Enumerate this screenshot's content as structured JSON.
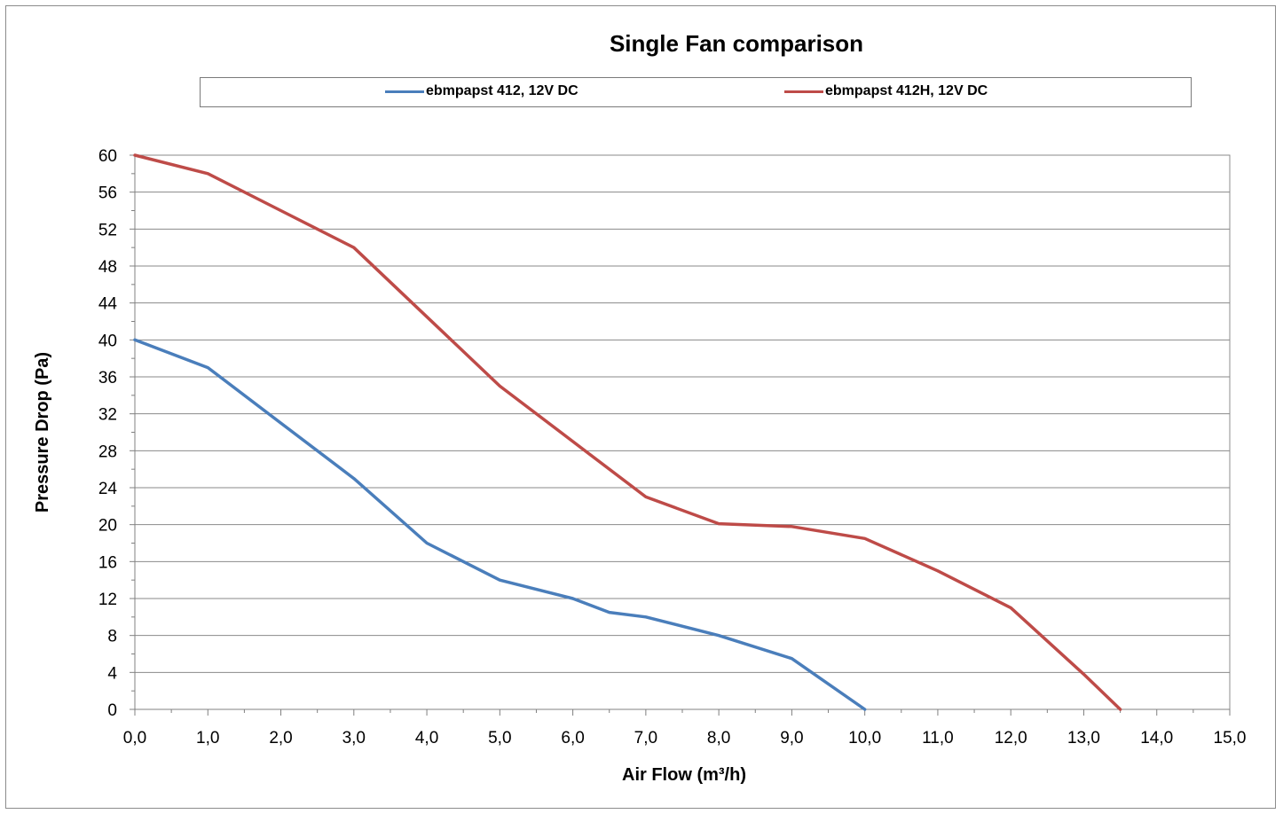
{
  "chart_data": {
    "type": "line",
    "title": "Single Fan comparison",
    "xlabel": "Air Flow (m³/h)",
    "ylabel": "Pressure Drop (Pa)",
    "xlim": [
      0,
      15
    ],
    "ylim": [
      0,
      60
    ],
    "x_ticks": [
      0,
      1,
      2,
      3,
      4,
      5,
      6,
      7,
      8,
      9,
      10,
      11,
      12,
      13,
      14,
      15
    ],
    "x_tick_labels": [
      "0,0",
      "1,0",
      "2,0",
      "3,0",
      "4,0",
      "5,0",
      "6,0",
      "7,0",
      "8,0",
      "9,0",
      "10,0",
      "11,0",
      "12,0",
      "13,0",
      "14,0",
      "15,0"
    ],
    "y_ticks": [
      0,
      4,
      8,
      12,
      16,
      20,
      24,
      28,
      32,
      36,
      40,
      44,
      48,
      52,
      56,
      60
    ],
    "y_tick_labels": [
      "0",
      "4",
      "8",
      "12",
      "16",
      "20",
      "24",
      "28",
      "32",
      "36",
      "40",
      "44",
      "48",
      "52",
      "56",
      "60"
    ],
    "grid": "horizontal",
    "legend_position": "top",
    "series": [
      {
        "name": "ebmpapst 412, 12V DC",
        "color": "#4a7ebb",
        "points": [
          [
            0,
            40
          ],
          [
            1,
            37
          ],
          [
            2,
            31
          ],
          [
            3,
            25
          ],
          [
            4,
            18
          ],
          [
            5,
            14
          ],
          [
            6,
            12
          ],
          [
            6.5,
            10.5
          ],
          [
            7,
            10
          ],
          [
            8,
            8
          ],
          [
            9,
            5.5
          ],
          [
            10,
            0
          ]
        ]
      },
      {
        "name": "ebmpapst 412H, 12V DC",
        "color": "#be4b48",
        "points": [
          [
            0,
            60
          ],
          [
            1,
            58
          ],
          [
            2,
            54
          ],
          [
            3,
            50
          ],
          [
            4,
            42.5
          ],
          [
            5,
            35
          ],
          [
            6,
            29
          ],
          [
            7,
            23
          ],
          [
            8,
            20.1
          ],
          [
            9,
            19.8
          ],
          [
            10,
            18.5
          ],
          [
            11,
            15
          ],
          [
            12,
            11
          ],
          [
            13,
            3.8
          ],
          [
            13.5,
            0
          ]
        ]
      }
    ]
  }
}
